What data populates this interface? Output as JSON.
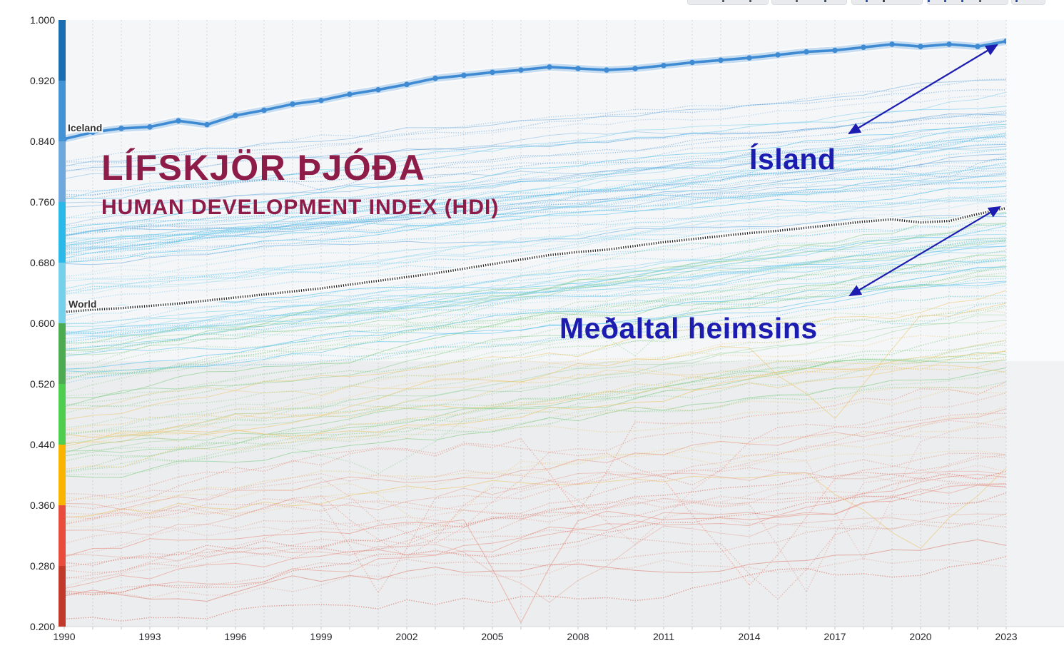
{
  "window": {
    "toolbar_remnant": {
      "visible": true,
      "pills": [
        [
          8,
          112
        ],
        [
          126,
          104
        ],
        [
          238,
          98
        ],
        [
          344,
          112
        ],
        [
          462,
          46
        ]
      ],
      "dots": [
        [
          57,
          "#4a4f57"
        ],
        [
          95,
          "#4a4f57"
        ],
        [
          160,
          "#4a4f57"
        ],
        [
          200,
          "#30445e"
        ],
        [
          258,
          "#22459c"
        ],
        [
          282,
          "#30303a"
        ],
        [
          345,
          "#22459c"
        ],
        [
          368,
          "#22459c"
        ],
        [
          392,
          "#22459c"
        ],
        [
          417,
          "#4a4f57"
        ],
        [
          468,
          "#22459c"
        ]
      ]
    }
  },
  "chart_data": {
    "type": "line",
    "title": "LÍFSKJÖR ÞJÓÐA",
    "subtitle": "HUMAN DEVELOPMENT INDEX (HDI)",
    "title_color": "#8e1c49",
    "annotation_color": "#1c1db0",
    "x_start_year": 1990,
    "x_end_year": 2023,
    "x_tick_years": [
      "1990",
      "1993",
      "1996",
      "1999",
      "2002",
      "2005",
      "2008",
      "2011",
      "2014",
      "2017",
      "2020",
      "2023"
    ],
    "y_tick_labels": [
      "1.000",
      "0.920",
      "0.840",
      "0.760",
      "0.680",
      "0.600",
      "0.520",
      "0.440",
      "0.360",
      "0.280",
      "0.200"
    ],
    "y_tick_values": [
      1.0,
      0.92,
      0.84,
      0.76,
      0.68,
      0.6,
      0.52,
      0.44,
      0.36,
      0.28,
      0.2
    ],
    "ylim": [
      0.2,
      1.0
    ],
    "grid": "vertical-dashed-per-year",
    "legend": "none",
    "background_bands": [
      {
        "from": 0.55,
        "to": 1.0,
        "color": "#f5f6f8",
        "margin_color": "#fafbfc"
      },
      {
        "from": 0.2,
        "to": 0.55,
        "color": "#ebedee",
        "margin_color": "#f1f2f4"
      }
    ],
    "colorbar": [
      {
        "from": 0.92,
        "to": 1.0,
        "color": "#1a6db1"
      },
      {
        "from": 0.84,
        "to": 0.92,
        "color": "#4393d4"
      },
      {
        "from": 0.76,
        "to": 0.84,
        "color": "#6fa8dc"
      },
      {
        "from": 0.68,
        "to": 0.76,
        "color": "#29b8e8"
      },
      {
        "from": 0.6,
        "to": 0.68,
        "color": "#75d0e9"
      },
      {
        "from": 0.52,
        "to": 0.6,
        "color": "#4cab51"
      },
      {
        "from": 0.44,
        "to": 0.52,
        "color": "#4ecd4f"
      },
      {
        "from": 0.36,
        "to": 0.44,
        "color": "#f8b400"
      },
      {
        "from": 0.28,
        "to": 0.36,
        "color": "#e74c3c"
      },
      {
        "from": 0.2,
        "to": 0.28,
        "color": "#c0392b"
      }
    ],
    "series": [
      {
        "name": "iceland",
        "label": "Iceland",
        "color": "#3e8bd3",
        "style": "solid-markers",
        "values": [
          0.843,
          0.852,
          0.857,
          0.859,
          0.867,
          0.862,
          0.874,
          0.881,
          0.889,
          0.894,
          0.902,
          0.908,
          0.915,
          0.923,
          0.927,
          0.931,
          0.934,
          0.938,
          0.936,
          0.934,
          0.936,
          0.94,
          0.944,
          0.947,
          0.95,
          0.954,
          0.958,
          0.96,
          0.964,
          0.968,
          0.965,
          0.968,
          0.965,
          0.972
        ]
      },
      {
        "name": "world",
        "label": "World",
        "color": "#1f1f1f",
        "style": "dotted",
        "values": [
          0.615,
          0.618,
          0.62,
          0.623,
          0.626,
          0.63,
          0.634,
          0.638,
          0.642,
          0.646,
          0.651,
          0.656,
          0.661,
          0.666,
          0.672,
          0.678,
          0.684,
          0.69,
          0.694,
          0.697,
          0.702,
          0.707,
          0.711,
          0.715,
          0.719,
          0.722,
          0.726,
          0.73,
          0.734,
          0.737,
          0.733,
          0.735,
          0.744,
          0.752
        ]
      }
    ],
    "annotations": [
      {
        "text": "Ísland",
        "arrow_from": [
          1190,
          187
        ],
        "arrow_to": [
          1397,
          63
        ]
      },
      {
        "text": "Meðaltal heimsins",
        "arrow_from": [
          1191,
          414
        ],
        "arrow_to": [
          1401,
          290
        ]
      }
    ],
    "ensemble": {
      "seed": 1337,
      "bands": [
        {
          "name": "blue",
          "color": "#64a7db",
          "count": 26,
          "v0": [
            0.66,
            0.82
          ],
          "rise": [
            0.07,
            0.13
          ],
          "vol": 0.0045,
          "dip_chance": 0.05,
          "dip_depth": 0.02
        },
        {
          "name": "cyan",
          "color": "#57c3ea",
          "count": 48,
          "v0": [
            0.52,
            0.77
          ],
          "rise": [
            0.09,
            0.16
          ],
          "vol": 0.005,
          "dip_chance": 0.06,
          "dip_depth": 0.03
        },
        {
          "name": "light-cyan",
          "color": "#93d8ee",
          "count": 14,
          "v0": [
            0.56,
            0.72
          ],
          "rise": [
            0.08,
            0.14
          ],
          "vol": 0.005,
          "dip_chance": 0.05,
          "dip_depth": 0.03
        },
        {
          "name": "green",
          "color": "#82cd88",
          "count": 34,
          "v0": [
            0.4,
            0.6
          ],
          "rise": [
            0.1,
            0.19
          ],
          "vol": 0.0065,
          "dip_chance": 0.18,
          "dip_depth": 0.05
        },
        {
          "name": "yellow",
          "color": "#eec464",
          "count": 15,
          "v0": [
            0.33,
            0.49
          ],
          "rise": [
            0.08,
            0.18
          ],
          "vol": 0.009,
          "dip_chance": 0.35,
          "dip_depth": 0.09
        },
        {
          "name": "red",
          "color": "#e78d80",
          "count": 20,
          "v0": [
            0.24,
            0.41
          ],
          "rise": [
            0.06,
            0.17
          ],
          "vol": 0.011,
          "dip_chance": 0.5,
          "dip_depth": 0.12
        },
        {
          "name": "dark-red",
          "color": "#d96b5d",
          "count": 7,
          "v0": [
            0.21,
            0.28
          ],
          "rise": [
            0.05,
            0.15
          ],
          "vol": 0.009,
          "dip_chance": 0.35,
          "dip_depth": 0.08
        }
      ]
    }
  }
}
